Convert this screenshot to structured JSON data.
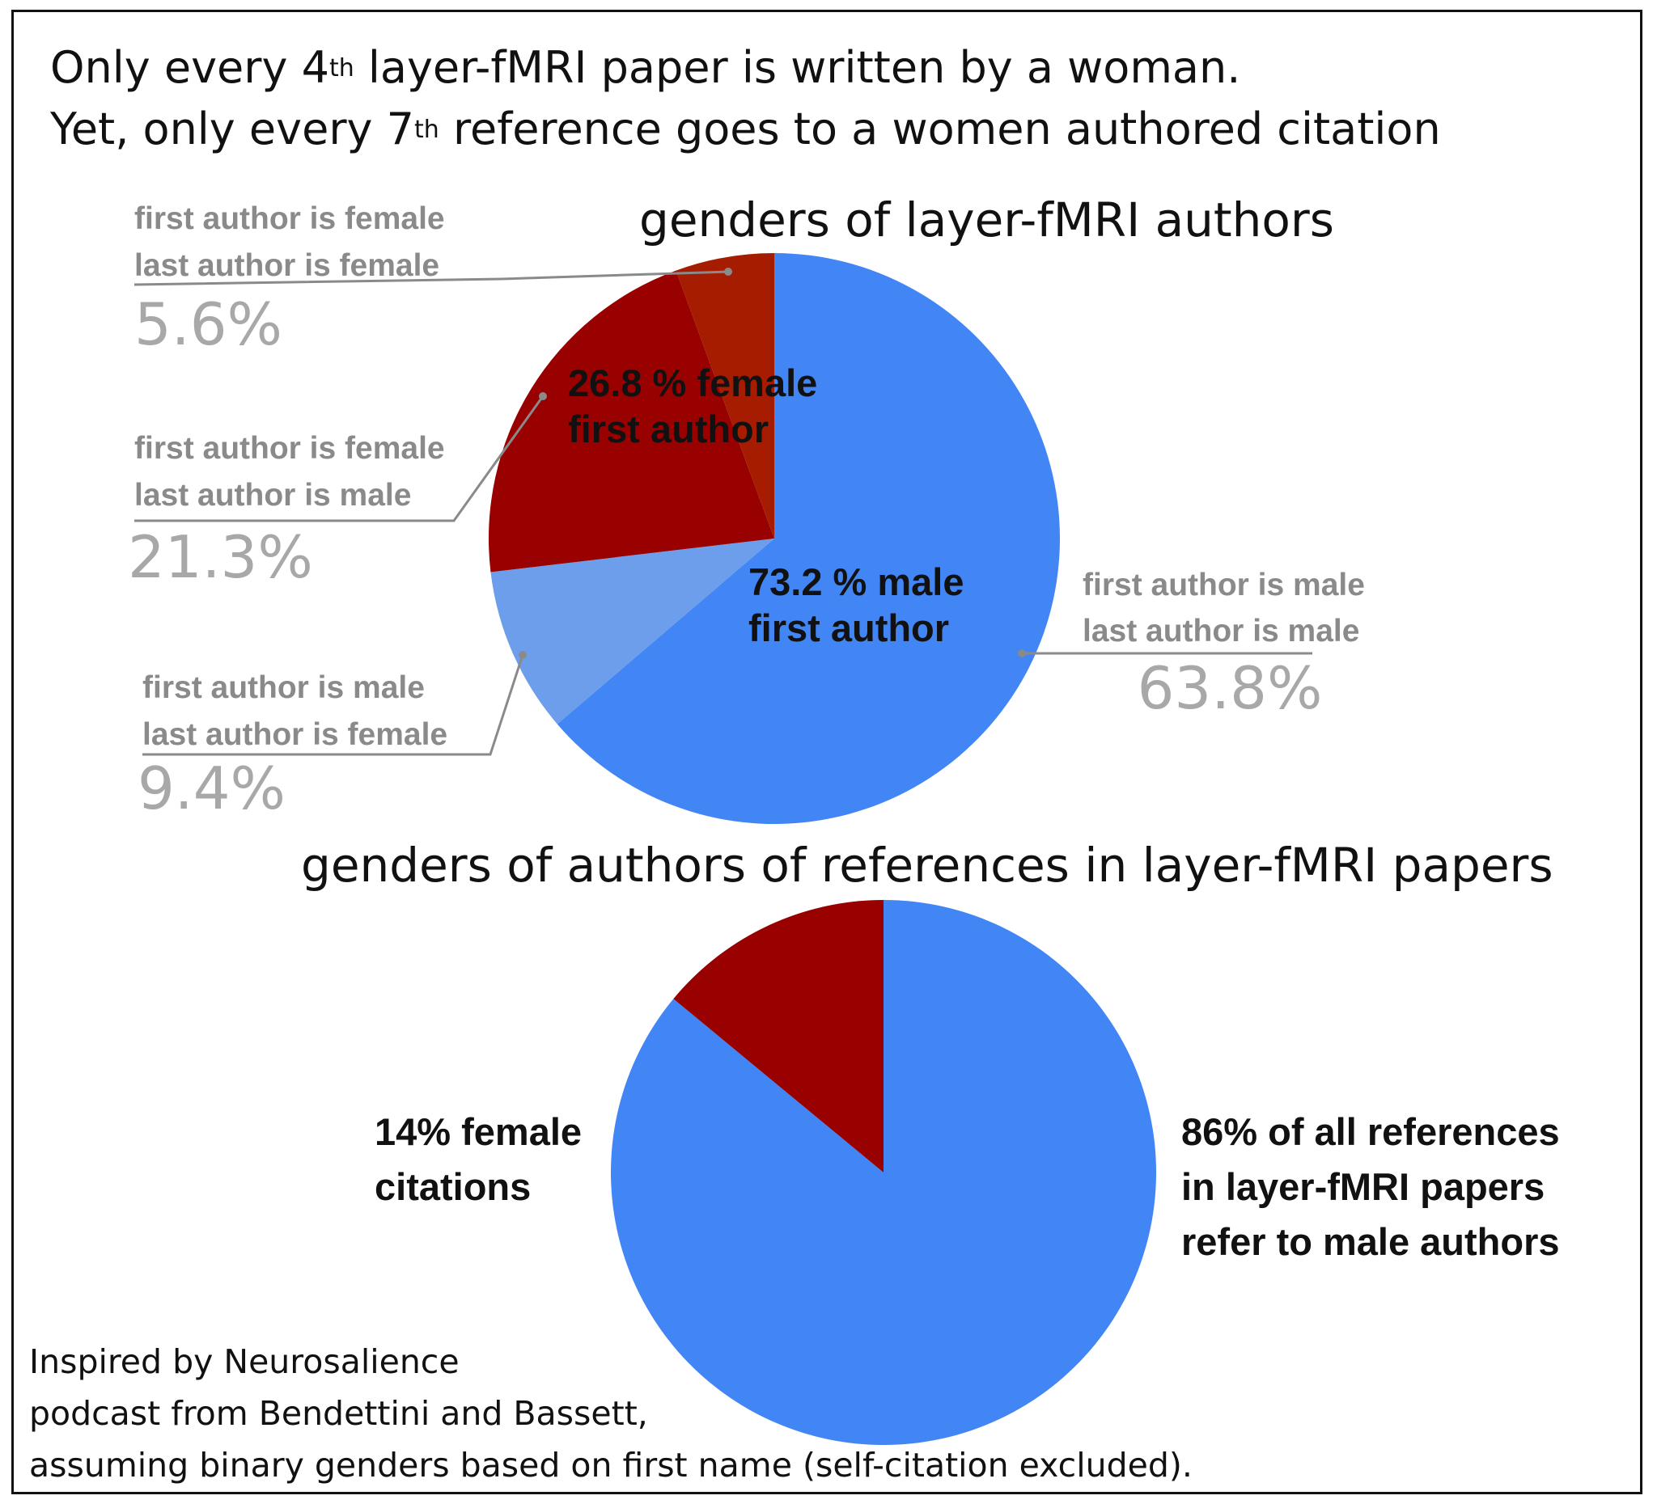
{
  "header": {
    "line1_pre": "Only every 4",
    "line1_sup": "th",
    "line1_post": " layer-fMRI paper is written by a woman.",
    "line2_pre": "Yet, only every 7",
    "line2_sup": "th",
    "line2_post": " reference goes to a women authored citation"
  },
  "footnote": {
    "line1": "Inspired by Neurosalience",
    "line2": "podcast from Bendettini and Bassett,",
    "line3": "assuming binary genders based on first name (self-citation excluded)."
  },
  "chart_data": [
    {
      "type": "pie",
      "title": "genders of layer-fMRI authors",
      "start": "12 o'clock, clockwise",
      "slices": [
        {
          "line1": "first author is male",
          "line2": "last author is male",
          "pct_label": "63.8%",
          "value": 63.8,
          "color": "#4285f4"
        },
        {
          "line1": "first author is male",
          "line2": "last author is female",
          "pct_label": "9.4%",
          "value": 9.4,
          "color": "#6d9eeb"
        },
        {
          "line1": "first author is female",
          "line2": "last author is male",
          "pct_label": "21.3%",
          "value": 21.3,
          "color": "#990000"
        },
        {
          "line1": "first author is female",
          "line2": "last author is female",
          "pct_label": "5.6%",
          "value": 5.6,
          "color": "#a61c00"
        }
      ],
      "groups": [
        {
          "line1": "73.2 % male",
          "line2": "first author",
          "value": 73.2
        },
        {
          "line1": "26.8 % female",
          "line2": "first author",
          "value": 26.8
        }
      ]
    },
    {
      "type": "pie",
      "title": "genders of authors of references in layer-fMRI papers",
      "start": "12 o'clock, clockwise",
      "slices": [
        {
          "lines": [
            "86% of all references",
            "in layer-fMRI papers",
            "refer to male authors"
          ],
          "value": 86,
          "color": "#4285f4"
        },
        {
          "lines": [
            "14% female",
            "citations"
          ],
          "value": 14,
          "color": "#990000"
        }
      ]
    }
  ]
}
